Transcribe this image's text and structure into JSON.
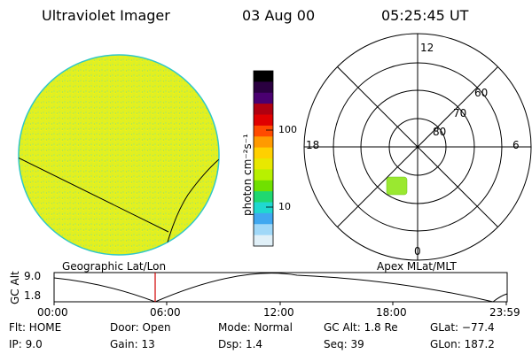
{
  "header": {
    "instrument": "Ultraviolet Imager",
    "date": "03 Aug 00",
    "time": "05:25:45 UT"
  },
  "colorbar": {
    "unit_label": "photon cm⁻²s⁻¹",
    "tick_100": "100",
    "tick_10": "10",
    "colors": [
      "#000000",
      "#2a0040",
      "#4a0070",
      "#b00010",
      "#e00000",
      "#ff4a00",
      "#ff9a00",
      "#ffd000",
      "#e8e800",
      "#b8f000",
      "#70e000",
      "#20d870",
      "#20d8d0",
      "#40a8f0",
      "#a0d8f8",
      "#e0f0f8"
    ]
  },
  "polar_plot": {
    "label_top": "12",
    "label_bottom": "0",
    "label_left": "18",
    "label_right": "6",
    "lat_60": "60",
    "lat_70": "70",
    "lat_80": "80"
  },
  "left_caption": "Geographic Lat/Lon",
  "right_caption": "Apex MLat/MLT",
  "altitude_plot": {
    "ylabel": "GC Alt",
    "y_top": "9.0",
    "y_bottom": "1.8",
    "x_ticks": [
      "00:00",
      "06:00",
      "12:00",
      "18:00",
      "23:59"
    ],
    "marker_color": "#d00000"
  },
  "status": {
    "flt": "Flt: HOME",
    "ip": "IP:  9.0",
    "door": "Door: Open",
    "gain": "Gain: 13",
    "mode": "Mode: Normal",
    "dsp": "Dsp:     1.4",
    "gc_alt": "GC Alt: 1.8 Re",
    "seq": "Seq: 39",
    "glat": "GLat: −77.4",
    "glon": "GLon: 187.2"
  },
  "image_colors": {
    "disk_fill": "#e2f020",
    "disk_edge": "#30c8c8",
    "blob_fill": "#9ae830"
  }
}
